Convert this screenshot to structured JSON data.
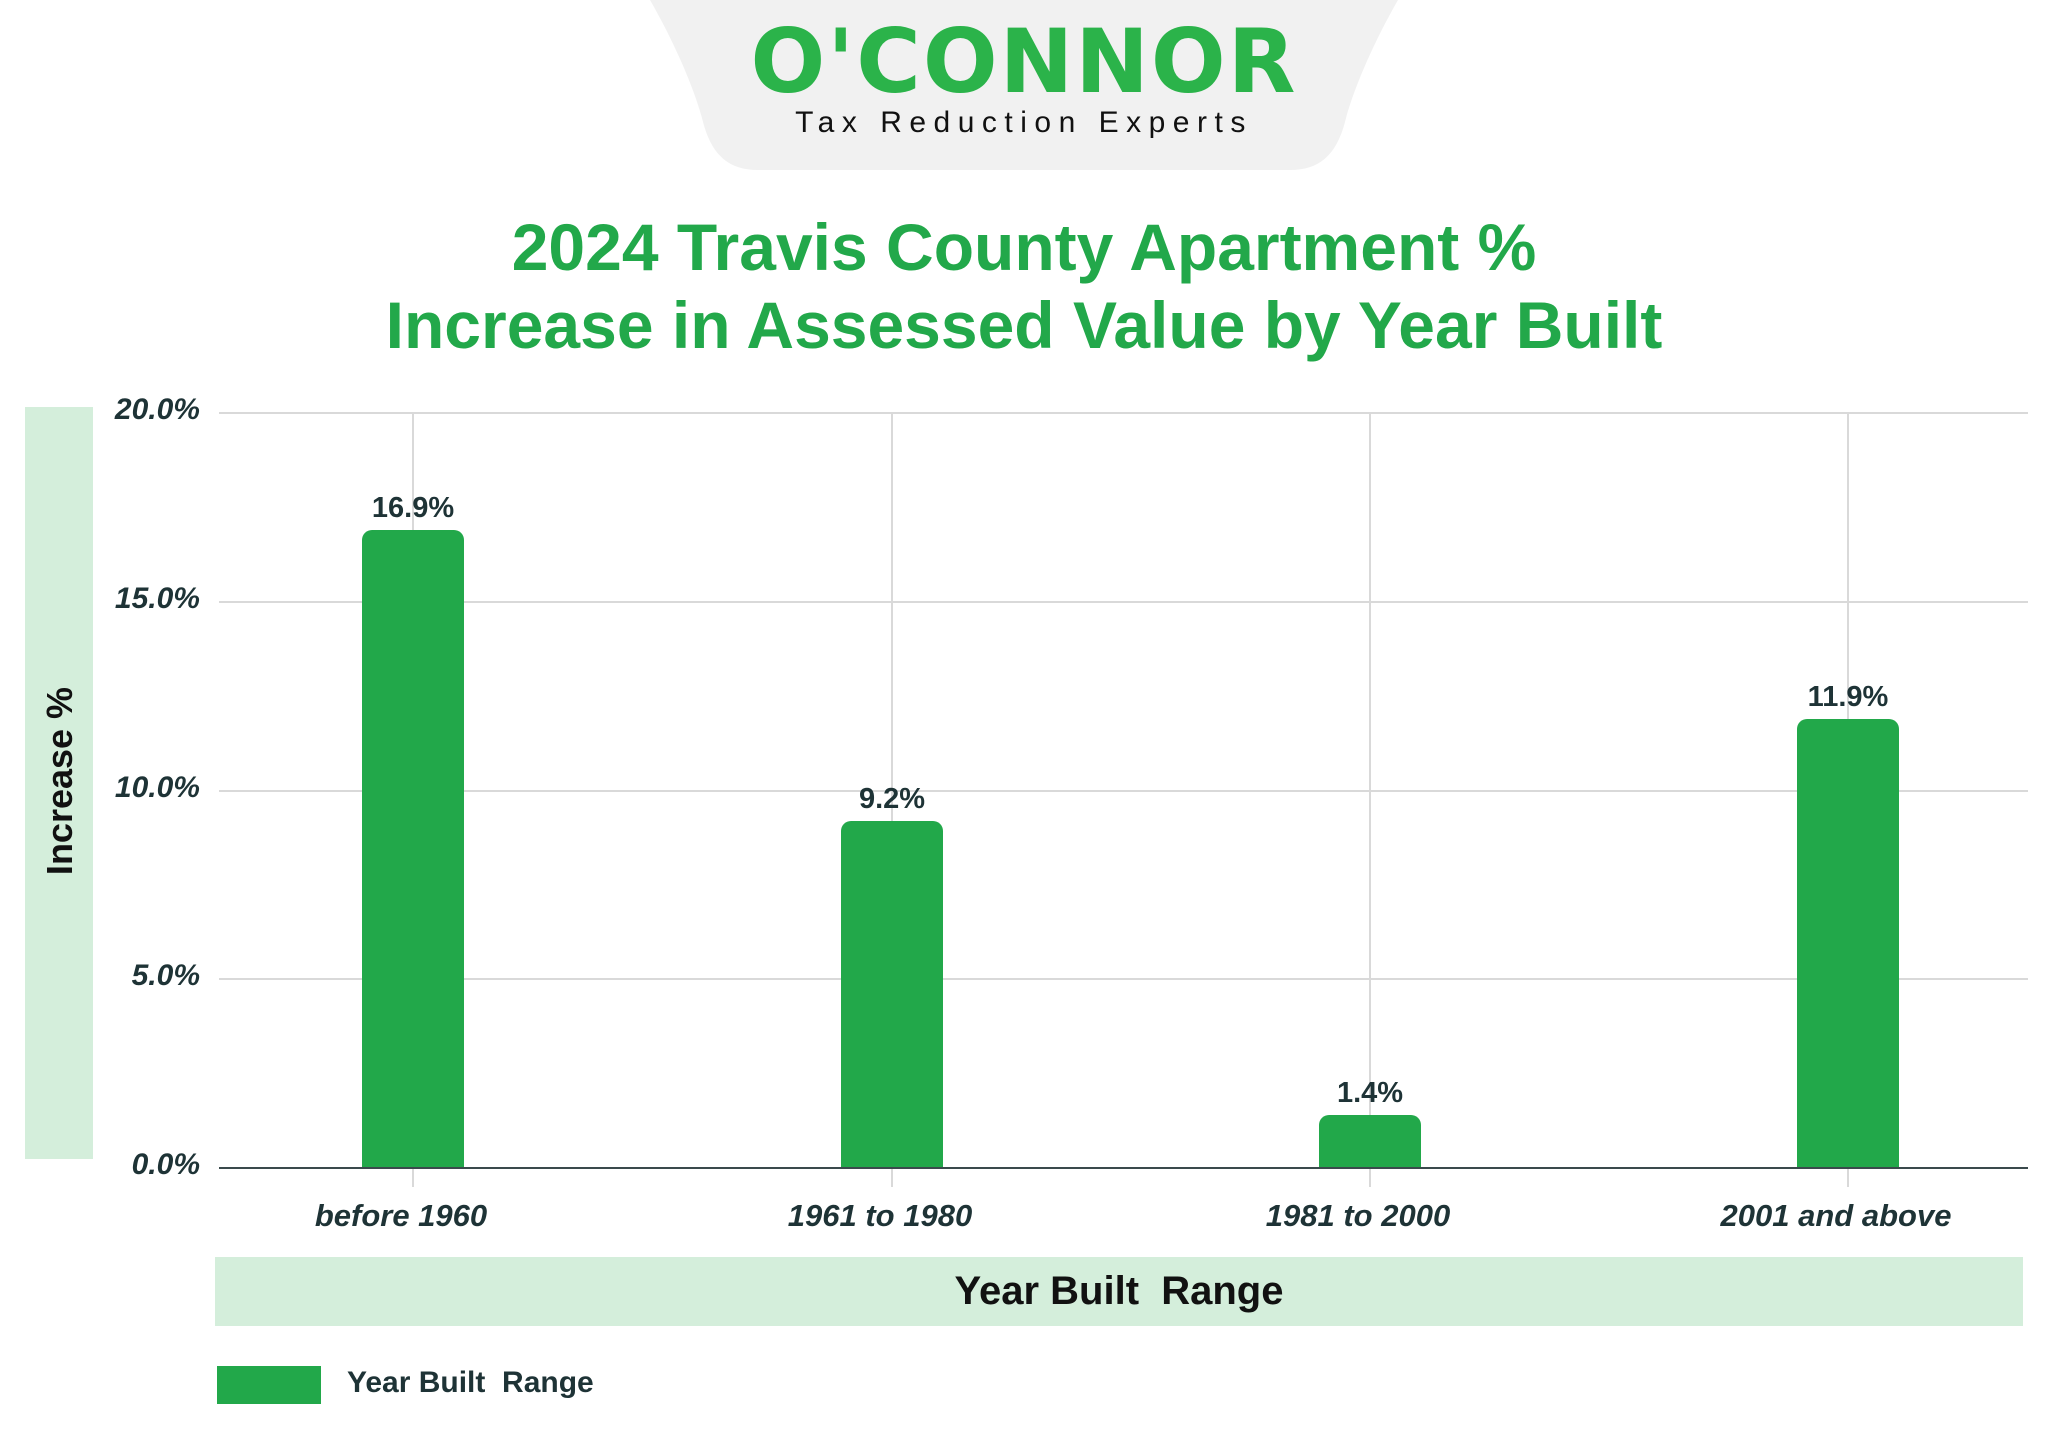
{
  "header": {
    "logo_text": "O'CONNOR",
    "tagline": "Tax Reduction Experts",
    "logo_color": "#2bb34a",
    "logo_bg_color": "#f1f1f1"
  },
  "title": {
    "line1": "2024 Travis County Apartment %",
    "line2": "Increase in Assessed Value by Year Built",
    "color": "#22a84a"
  },
  "axes": {
    "y_title": "Increase %",
    "x_title": "Year Built  Range",
    "y_ticks": [
      "20.0%",
      "15.0%",
      "10.0%",
      "5.0%",
      "0.0%"
    ],
    "band_color": "#d4eedb"
  },
  "legend": {
    "label": "Year Built  Range",
    "color": "#22a84a"
  },
  "chart_data": {
    "type": "bar",
    "title": "2024 Travis County Apartment % Increase in Assessed Value by Year Built",
    "xlabel": "Year Built  Range",
    "ylabel": "Increase %",
    "categories": [
      "before 1960",
      "1961 to 1980",
      "1981 to 2000",
      "2001 and above"
    ],
    "values": [
      16.9,
      9.2,
      1.4,
      11.9
    ],
    "value_labels": [
      "16.9%",
      "9.2%",
      "1.4%",
      "11.9%"
    ],
    "series": [
      {
        "name": "Year Built  Range",
        "values": [
          16.9,
          9.2,
          1.4,
          11.9
        ],
        "color": "#22a84a"
      }
    ],
    "ylim": [
      0,
      20
    ],
    "y_ticks": [
      0,
      5,
      10,
      15,
      20
    ],
    "y_tick_format": "0.0%",
    "grid": true,
    "legend_position": "bottom-left"
  }
}
